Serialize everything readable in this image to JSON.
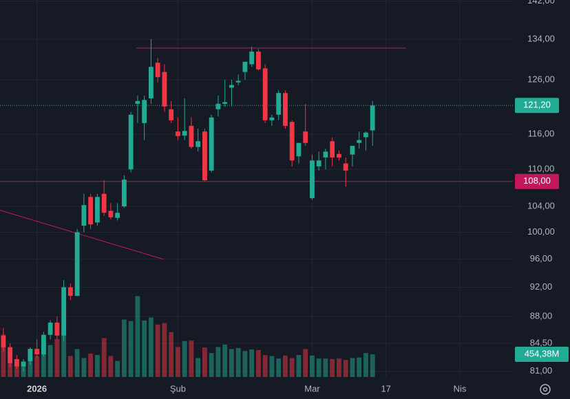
{
  "chart_data": {
    "type": "candlestick",
    "log_scale": true,
    "grid": true,
    "up_color": "#22ab94",
    "down_color": "#f23645",
    "open": [
      85.5,
      84.0,
      82.5,
      81.6,
      82.2,
      83.8,
      83.1,
      85.6,
      87.2,
      85.5,
      92.0,
      90.8,
      101.0,
      105.5,
      101.5,
      106.0,
      103.3,
      102.2,
      104.0,
      110.0,
      121.5,
      118.0,
      122.5,
      129.3,
      127.5,
      120.5,
      116.5,
      115.8,
      117.5,
      113.8,
      116.5,
      109.8,
      120.5,
      121.5,
      124.5,
      125.5,
      127.5,
      129.0,
      131.5,
      128.2,
      118.5,
      119.5,
      123.5,
      118.2,
      112.2,
      116.5,
      105.3,
      110.5,
      112.0,
      114.8,
      112.6,
      111.0,
      112.5,
      114.5,
      115.5,
      116.7
    ],
    "high": [
      86.5,
      84.5,
      83.0,
      82.5,
      84.0,
      85.0,
      86.0,
      87.5,
      88.0,
      93.0,
      92.5,
      100.5,
      106.0,
      106.0,
      106.0,
      108.2,
      104.5,
      104.5,
      109.0,
      120.0,
      123.0,
      123.0,
      134.0,
      130.2,
      129.0,
      122.0,
      119.0,
      122.5,
      119.0,
      117.0,
      117.0,
      119.5,
      123.0,
      126.0,
      126.0,
      127.0,
      129.5,
      132.5,
      132.0,
      129.0,
      119.5,
      124.0,
      124.0,
      118.5,
      114.5,
      121.5,
      112.5,
      113.0,
      113.5,
      115.5,
      113.2,
      112.0,
      114.0,
      116.5,
      116.5,
      122.0
    ],
    "low": [
      83.5,
      81.5,
      81.3,
      81.0,
      81.8,
      82.6,
      82.8,
      85.0,
      85.0,
      84.8,
      90.2,
      90.8,
      100.0,
      100.5,
      101.0,
      102.5,
      102.0,
      101.8,
      103.8,
      109.5,
      118.0,
      115.0,
      121.5,
      125.5,
      120.0,
      118.0,
      115.0,
      115.0,
      113.5,
      113.0,
      108.0,
      109.5,
      119.2,
      121.0,
      121.0,
      125.0,
      126.0,
      128.5,
      127.8,
      118.0,
      117.5,
      118.5,
      117.0,
      110.5,
      111.0,
      114.0,
      105.0,
      109.8,
      110.0,
      110.5,
      111.5,
      107.2,
      110.5,
      113.5,
      113.2,
      114.0
    ],
    "close": [
      84.0,
      82.0,
      81.6,
      82.2,
      83.8,
      83.1,
      85.6,
      87.2,
      85.5,
      92.0,
      90.8,
      100.0,
      104.2,
      101.2,
      105.5,
      103.0,
      102.3,
      103.0,
      108.3,
      119.5,
      122.0,
      122.2,
      128.5,
      126.5,
      121.0,
      118.5,
      115.7,
      116.6,
      113.8,
      114.8,
      108.2,
      119.0,
      121.5,
      121.8,
      125.0,
      125.8,
      129.5,
      131.5,
      128.0,
      118.5,
      119.0,
      123.5,
      117.5,
      111.5,
      114.5,
      114.5,
      111.5,
      111.5,
      113.0,
      112.0,
      112.0,
      109.8,
      114.0,
      115.0,
      116.3,
      121.2
    ],
    "xlim": [
      -0.5,
      75.9
    ],
    "xticks": [
      {
        "value": 5,
        "label": "2026"
      },
      {
        "value": 26,
        "label": "Şub"
      },
      {
        "value": 46,
        "label": "Mar"
      },
      {
        "value": 57,
        "label": "17"
      },
      {
        "value": 68,
        "label": "Nis"
      }
    ],
    "ylim": [
      80.3,
      142.2
    ],
    "yticks": [
      {
        "value": 142,
        "label": "142,00"
      },
      {
        "value": 134,
        "label": "134,00"
      },
      {
        "value": 126,
        "label": "126,00"
      },
      {
        "value": 116,
        "label": "116,00"
      },
      {
        "value": 110,
        "label": "110,00"
      },
      {
        "value": 104,
        "label": "104,00"
      },
      {
        "value": 100,
        "label": "100,00"
      },
      {
        "value": 96,
        "label": "96,00"
      },
      {
        "value": 92,
        "label": "92,00"
      },
      {
        "value": 88,
        "label": "88,00"
      },
      {
        "value": 84.5,
        "label": "84,50"
      },
      {
        "value": 81,
        "label": "81,00"
      }
    ],
    "last_price": {
      "value": 121.2,
      "label": "121,20",
      "color": "#22ab94"
    },
    "hline": {
      "value": 108,
      "label": "108,00",
      "color": "#c2185b"
    },
    "segments": [
      {
        "x": [
          19.8,
          60
        ],
        "y": [
          132.2,
          132.2
        ],
        "color": "#c2185b"
      },
      {
        "x": [
          -0.5,
          23.8
        ],
        "y": [
          103.4,
          96
        ],
        "color": "#c2185b"
      }
    ],
    "volume": {
      "values": [
        850,
        600,
        350,
        250,
        300,
        420,
        500,
        640,
        760,
        1000,
        420,
        560,
        380,
        470,
        440,
        780,
        420,
        320,
        1150,
        1120,
        1620,
        1130,
        1190,
        1050,
        1080,
        900,
        600,
        720,
        730,
        380,
        590,
        480,
        600,
        650,
        560,
        580,
        520,
        550,
        540,
        440,
        420,
        370,
        430,
        380,
        440,
        560,
        430,
        370,
        370,
        360,
        370,
        340,
        380,
        390,
        480,
        454.38
      ],
      "ylim": [
        0,
        7550
      ],
      "last_label": "454,38M",
      "color": "#22ab94"
    }
  }
}
